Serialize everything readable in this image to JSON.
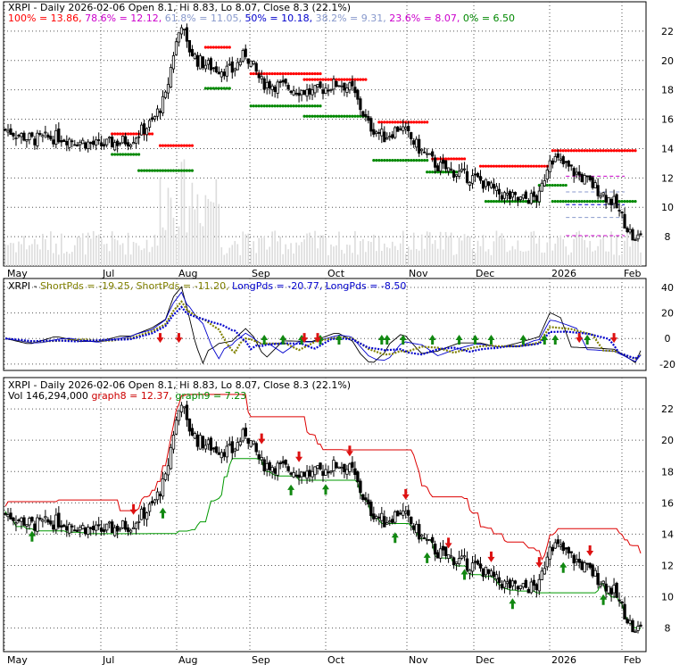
{
  "chart_data": [
    {
      "type": "candlestick",
      "title": "XRPI - Daily 2026-02-06 Open 8.1, Hi 8.83, Lo 8.07, Close 8.3 (22.1%)",
      "fib_levels": [
        {
          "label": "100%",
          "value": 13.86,
          "text": "100% = 13.86",
          "color": "#ff0000"
        },
        {
          "label": "78.6%",
          "value": 12.12,
          "text": "78.6% = 12.12",
          "color": "#cc00cc"
        },
        {
          "label": "61.8%",
          "value": 11.05,
          "text": "61.8% = 11.05",
          "color": "#8899cc"
        },
        {
          "label": "50%",
          "value": 10.18,
          "text": "50% = 10.18",
          "color": "#0000cc"
        },
        {
          "label": "38.2%",
          "value": 9.31,
          "text": "38.2% = 9.31",
          "color": "#8899cc"
        },
        {
          "label": "23.6%",
          "value": 8.07,
          "text": "23.6% = 8.07",
          "color": "#cc00cc"
        },
        {
          "label": "0%",
          "value": 6.5,
          "text": "0% = 6.50",
          "color": "#008800"
        }
      ],
      "x_tick_labels": [
        "May",
        "Jul",
        "Aug",
        "Sep",
        "Oct",
        "Nov",
        "Dec",
        "2026",
        "Feb"
      ],
      "y_tick_labels": [
        "22",
        "20",
        "18",
        "16",
        "14",
        "12",
        "10",
        "8"
      ],
      "ylim": [
        6,
        24
      ],
      "grid": true
    },
    {
      "type": "line",
      "legend": [
        {
          "text": "XRPI - ",
          "color": "#000000"
        },
        {
          "text": "ShortPds = -19.25, ",
          "color": "#808000"
        },
        {
          "text": "ShortPds = -11.20, ",
          "color": "#808000"
        },
        {
          "text": "LongPds = -20.77, ",
          "color": "#0000cc"
        },
        {
          "text": "LongPds = -8.50",
          "color": "#0000cc"
        }
      ],
      "y_tick_labels": [
        "40",
        "20",
        "0",
        "-20"
      ],
      "ylim": [
        -25,
        47
      ],
      "grid": true
    },
    {
      "type": "candlestick",
      "title": "XRPI - Daily 2026-02-06 Open 8.1, Hi 8.83, Lo 8.07, Close 8.3 (22.1%)",
      "legend": [
        {
          "text": "Vol 146,294,000 ",
          "color": "#000000"
        },
        {
          "text": "graph8 = 12.37, ",
          "color": "#cc0000"
        },
        {
          "text": "graph9 = 7.23",
          "color": "#008800"
        }
      ],
      "x_tick_labels": [
        "May",
        "Jul",
        "Aug",
        "Sep",
        "Oct",
        "Nov",
        "Dec",
        "2026",
        "Feb"
      ],
      "y_tick_labels": [
        "22",
        "20",
        "18",
        "16",
        "14",
        "12",
        "10",
        "8"
      ],
      "ylim": [
        6.5,
        24
      ],
      "grid": true
    }
  ]
}
